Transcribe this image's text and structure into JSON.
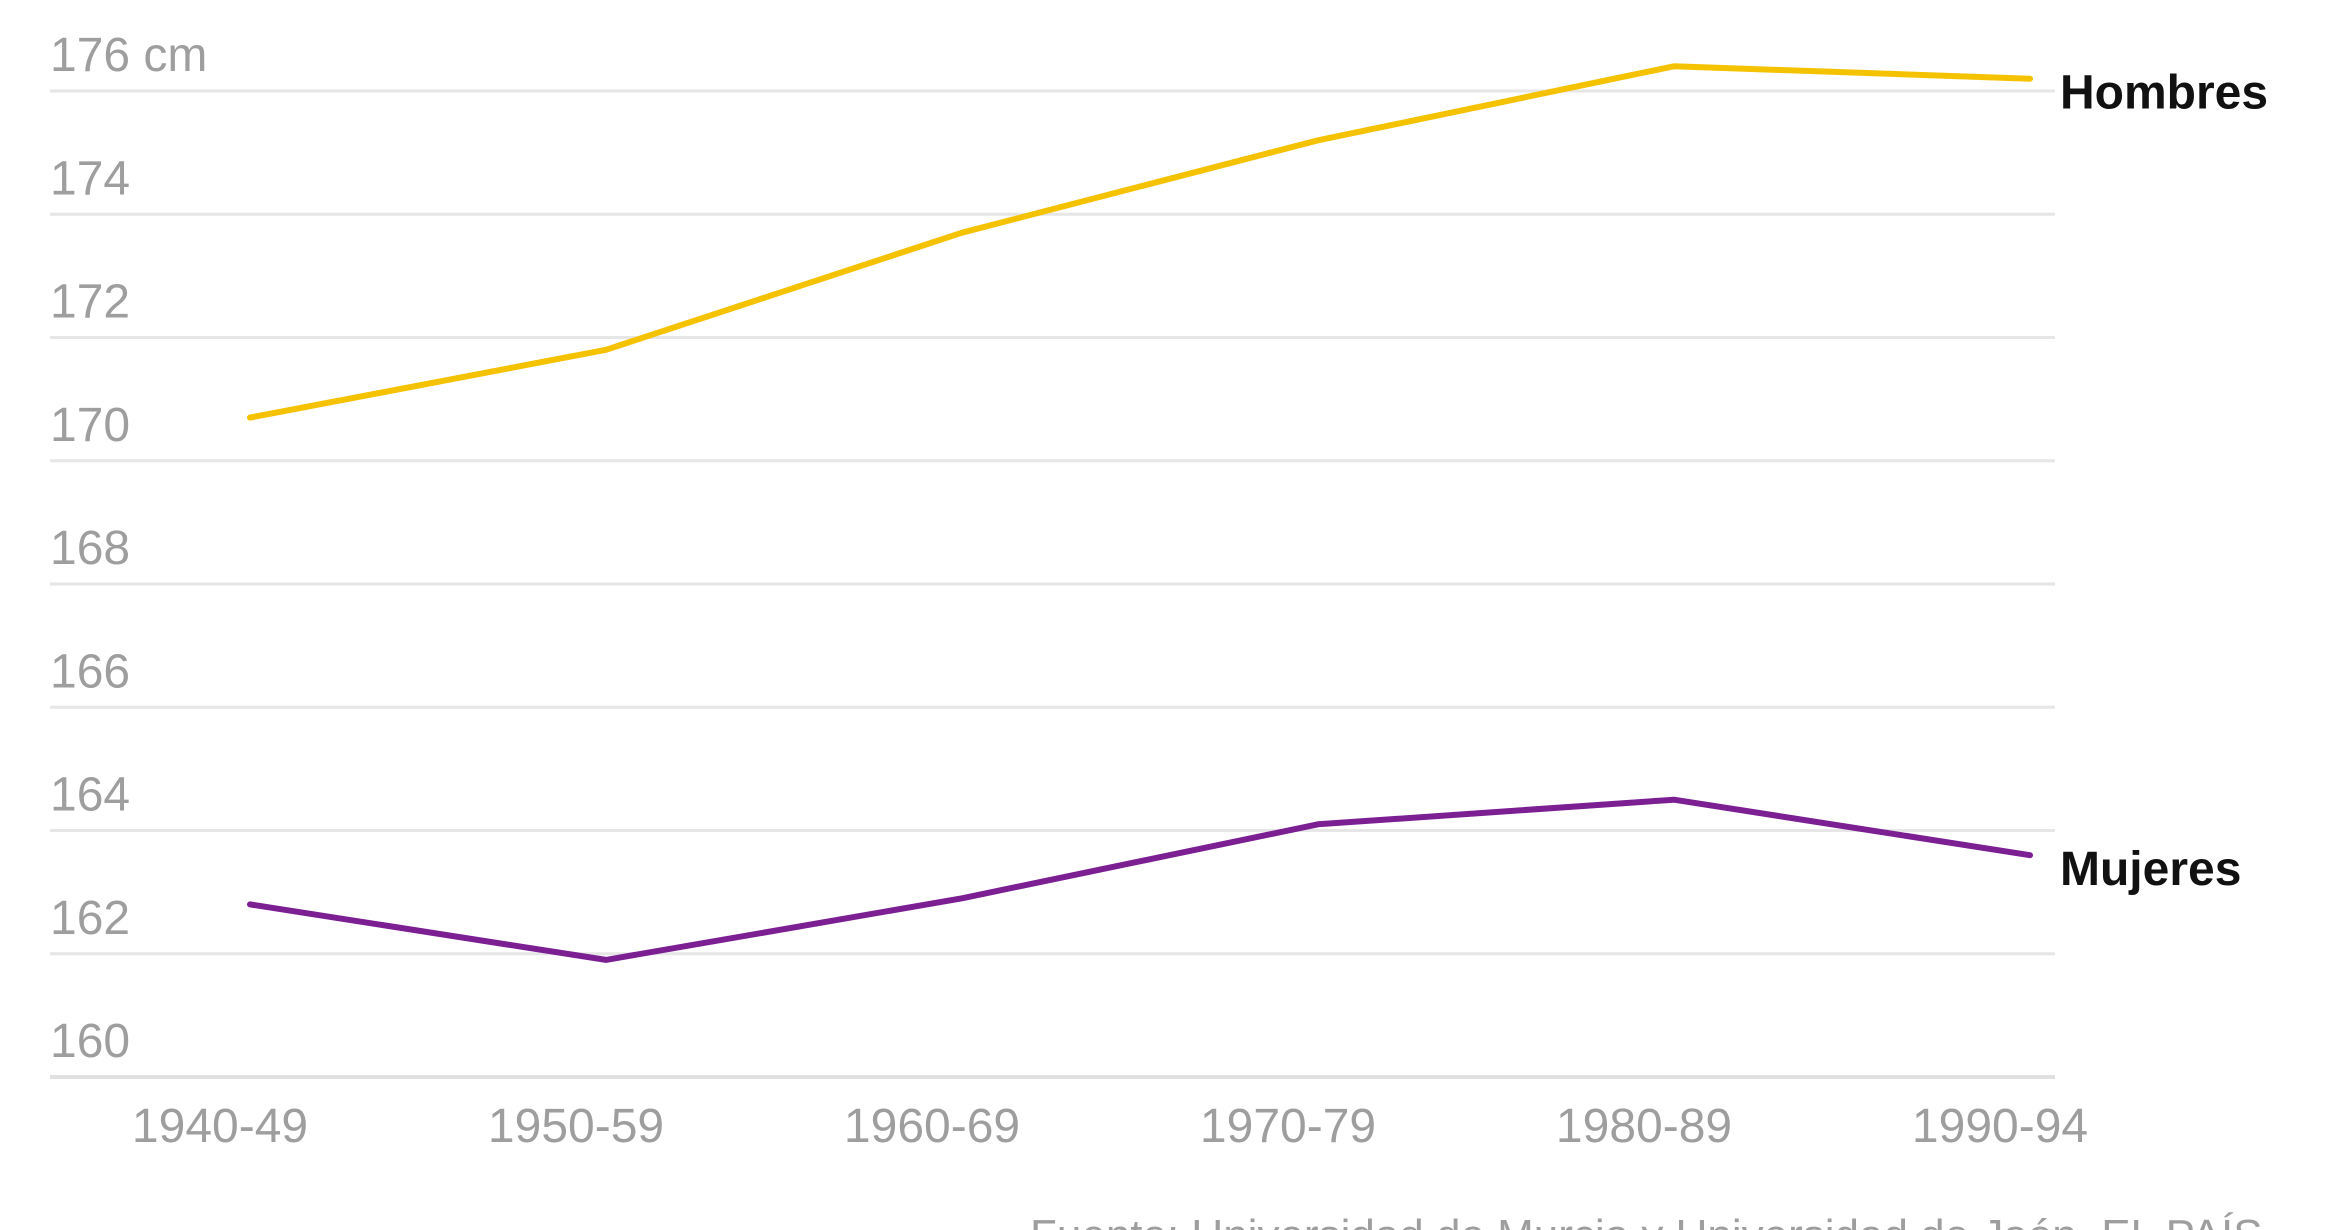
{
  "chart_data": {
    "type": "line",
    "categories": [
      "1940-49",
      "1950-59",
      "1960-69",
      "1970-79",
      "1980-89",
      "1990-94"
    ],
    "ylim": [
      160,
      176
    ],
    "yticks": [
      160,
      162,
      164,
      166,
      168,
      170,
      172,
      174,
      176
    ],
    "ytick_labels": [
      "160",
      "162",
      "164",
      "166",
      "168",
      "170",
      "172",
      "174",
      "176 cm"
    ],
    "grid": true,
    "series": [
      {
        "name": "Hombres",
        "color": "#f5c200",
        "values": [
          170.7,
          171.8,
          173.7,
          175.2,
          176.4,
          176.2
        ]
      },
      {
        "name": "Mujeres",
        "color": "#7b1f93",
        "values": [
          162.8,
          161.9,
          162.9,
          164.1,
          164.5,
          163.6
        ]
      }
    ],
    "source": "Fuente: Universidad de Murcia y Universidad de Jaén. EL PAÍS"
  }
}
